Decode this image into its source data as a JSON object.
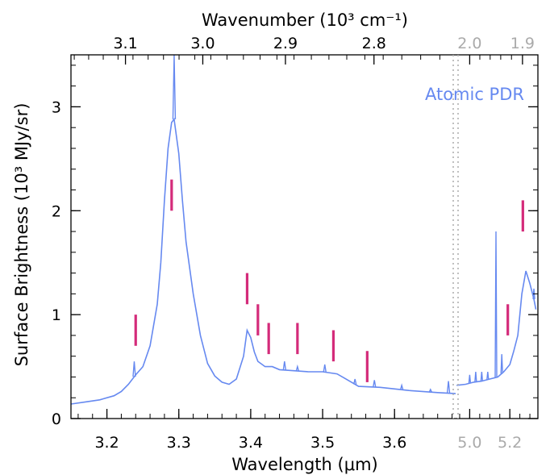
{
  "chart_data": {
    "type": "line",
    "title": "",
    "xlabel": "Wavelength (μm)",
    "ylabel": "Surface Brightness (10³ MJy/sr)",
    "x2label": "Wavenumber (10³ cm⁻¹)",
    "annotation": "Atomic PDR",
    "grid": false,
    "colors": {
      "spectrum": "#6689f0",
      "markers": "#d42b7a",
      "secondary_axis": "#aaaaaa",
      "axes": "#000000"
    },
    "panels": [
      {
        "name": "left",
        "xlim": [
          3.15,
          3.685
        ],
        "ylim": [
          0,
          3.5
        ]
      },
      {
        "name": "right",
        "xlim": [
          4.93,
          5.34
        ],
        "ylim": [
          0,
          3.5
        ]
      }
    ],
    "x_ticks_left": [
      3.2,
      3.3,
      3.4,
      3.5,
      3.6
    ],
    "x_ticks_right": [
      5.0,
      5.2
    ],
    "y_ticks": [
      0,
      1,
      2,
      3
    ],
    "top_ticks_left": [
      3.1,
      3.0,
      2.9,
      2.8
    ],
    "top_ticks_right": [
      2.0,
      1.9
    ],
    "x_tick_labels_left": [
      "3.2",
      "3.3",
      "3.4",
      "3.5",
      "3.6"
    ],
    "x_tick_labels_right": [
      "5.0",
      "5.2"
    ],
    "y_tick_labels": [
      "0",
      "1",
      "2",
      "3"
    ],
    "top_tick_labels_left": [
      "3.1",
      "3.0",
      "2.9",
      "2.8"
    ],
    "top_tick_labels_right": [
      "2.0",
      "1.9"
    ],
    "series_left": {
      "x": [
        3.15,
        3.17,
        3.19,
        3.21,
        3.22,
        3.23,
        3.24,
        3.25,
        3.26,
        3.27,
        3.275,
        3.28,
        3.285,
        3.29,
        3.2935,
        3.3,
        3.305,
        3.31,
        3.32,
        3.33,
        3.34,
        3.35,
        3.36,
        3.37,
        3.38,
        3.39,
        3.395,
        3.4,
        3.405,
        3.41,
        3.42,
        3.43,
        3.44,
        3.46,
        3.48,
        3.5,
        3.52,
        3.53,
        3.55,
        3.58,
        3.62,
        3.66,
        3.685
      ],
      "y": [
        0.14,
        0.16,
        0.18,
        0.22,
        0.26,
        0.33,
        0.42,
        0.5,
        0.7,
        1.1,
        1.5,
        2.1,
        2.6,
        2.85,
        2.88,
        2.55,
        2.1,
        1.7,
        1.2,
        0.8,
        0.53,
        0.41,
        0.35,
        0.33,
        0.38,
        0.6,
        0.85,
        0.78,
        0.64,
        0.55,
        0.5,
        0.5,
        0.47,
        0.46,
        0.45,
        0.45,
        0.43,
        0.39,
        0.31,
        0.3,
        0.27,
        0.25,
        0.24
      ]
    },
    "spikes_left": [
      {
        "x": 3.2935,
        "y": 3.5
      },
      {
        "x": 3.238,
        "y": 0.55
      },
      {
        "x": 3.447,
        "y": 0.55
      },
      {
        "x": 3.465,
        "y": 0.5
      },
      {
        "x": 3.503,
        "y": 0.52
      },
      {
        "x": 3.545,
        "y": 0.38
      },
      {
        "x": 3.572,
        "y": 0.37
      },
      {
        "x": 3.61,
        "y": 0.32
      },
      {
        "x": 3.65,
        "y": 0.28
      },
      {
        "x": 3.675,
        "y": 0.36
      }
    ],
    "series_right": {
      "x": [
        4.935,
        4.98,
        5.02,
        5.06,
        5.1,
        5.14,
        5.17,
        5.2,
        5.22,
        5.24,
        5.26,
        5.28,
        5.3,
        5.32,
        5.33
      ],
      "y": [
        0.32,
        0.33,
        0.35,
        0.36,
        0.38,
        0.4,
        0.45,
        0.52,
        0.65,
        0.8,
        1.2,
        1.42,
        1.3,
        1.15,
        1.05
      ]
    },
    "spikes_right": [
      {
        "x": 5.0,
        "y": 0.42
      },
      {
        "x": 5.03,
        "y": 0.45
      },
      {
        "x": 5.06,
        "y": 0.45
      },
      {
        "x": 5.09,
        "y": 0.45
      },
      {
        "x": 5.131,
        "y": 1.8
      },
      {
        "x": 5.16,
        "y": 0.62
      },
      {
        "x": 5.32,
        "y": 1.25
      }
    ],
    "markers_left": [
      {
        "x": 3.24,
        "y0": 0.7,
        "y1": 1.0
      },
      {
        "x": 3.29,
        "y0": 2.0,
        "y1": 2.3
      },
      {
        "x": 3.395,
        "y0": 1.1,
        "y1": 1.4
      },
      {
        "x": 3.41,
        "y0": 0.8,
        "y1": 1.1
      },
      {
        "x": 3.425,
        "y0": 0.62,
        "y1": 0.92
      },
      {
        "x": 3.465,
        "y0": 0.62,
        "y1": 0.92
      },
      {
        "x": 3.515,
        "y0": 0.55,
        "y1": 0.85
      },
      {
        "x": 3.562,
        "y0": 0.35,
        "y1": 0.65
      }
    ],
    "markers_right": [
      {
        "x": 5.19,
        "y0": 0.8,
        "y1": 1.1
      },
      {
        "x": 5.265,
        "y0": 1.8,
        "y1": 2.1
      }
    ]
  }
}
